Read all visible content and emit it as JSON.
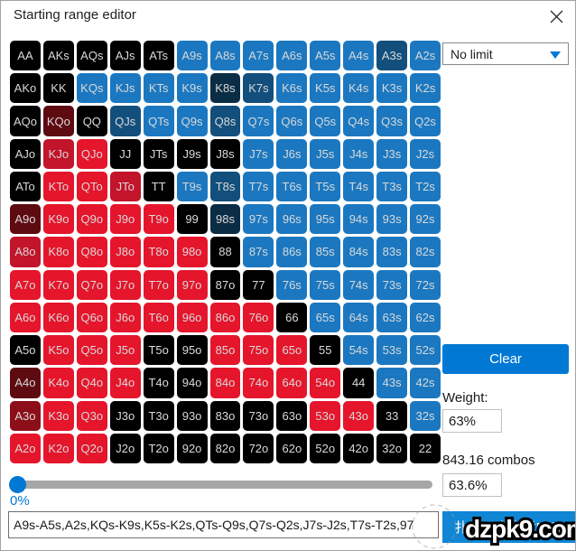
{
  "window": {
    "title": "Starting range editor"
  },
  "icons": {
    "close": "x-cross",
    "dropdown_arrow": "triangle-down"
  },
  "colors": {
    "accent": "#0078d4",
    "slider_track": "#a6a6a6",
    "map": {
      "k": "#000000",
      "b": "#1b78c0",
      "d": "#134f7c",
      "n": "#0b2c45",
      "r": "#e5152b",
      "e": "#c2142a",
      "m": "#5e0a11",
      "M": "#8c0e19"
    }
  },
  "grid": {
    "rows": [
      {
        "labels": [
          "AA",
          "AKs",
          "AQs",
          "AJs",
          "ATs",
          "A9s",
          "A8s",
          "A7s",
          "A6s",
          "A5s",
          "A4s",
          "A3s",
          "A2s"
        ],
        "colors": "kkkkkbbbbbbdb"
      },
      {
        "labels": [
          "AKo",
          "KK",
          "KQs",
          "KJs",
          "KTs",
          "K9s",
          "K8s",
          "K7s",
          "K6s",
          "K5s",
          "K4s",
          "K3s",
          "K2s"
        ],
        "colors": "kkbbbbndbbbbb"
      },
      {
        "labels": [
          "AQo",
          "KQo",
          "QQ",
          "QJs",
          "QTs",
          "Q9s",
          "Q8s",
          "Q7s",
          "Q6s",
          "Q5s",
          "Q4s",
          "Q3s",
          "Q2s"
        ],
        "colors": "kmkdbbdbbbbbb"
      },
      {
        "labels": [
          "AJo",
          "KJo",
          "QJo",
          "JJ",
          "JTs",
          "J9s",
          "J8s",
          "J7s",
          "J6s",
          "J5s",
          "J4s",
          "J3s",
          "J2s"
        ],
        "colors": "kerkkkkbbbbbb"
      },
      {
        "labels": [
          "ATo",
          "KTo",
          "QTo",
          "JTo",
          "TT",
          "T9s",
          "T8s",
          "T7s",
          "T6s",
          "T5s",
          "T4s",
          "T3s",
          "T2s"
        ],
        "colors": "krrekbdbbbbbb"
      },
      {
        "labels": [
          "A9o",
          "K9o",
          "Q9o",
          "J9o",
          "T9o",
          "99",
          "98s",
          "97s",
          "96s",
          "95s",
          "94s",
          "93s",
          "92s"
        ],
        "colors": "mrrrrknbbbbbb"
      },
      {
        "labels": [
          "A8o",
          "K8o",
          "Q8o",
          "J8o",
          "T8o",
          "98o",
          "88",
          "87s",
          "86s",
          "85s",
          "84s",
          "83s",
          "82s"
        ],
        "colors": "errrrrkbbbbbb"
      },
      {
        "labels": [
          "A7o",
          "K7o",
          "Q7o",
          "J7o",
          "T7o",
          "97o",
          "87o",
          "77",
          "76s",
          "75s",
          "74s",
          "73s",
          "72s"
        ],
        "colors": "rrrrrrkkbbbbb"
      },
      {
        "labels": [
          "A6o",
          "K6o",
          "Q6o",
          "J6o",
          "T6o",
          "96o",
          "86o",
          "76o",
          "66",
          "65s",
          "64s",
          "63s",
          "62s"
        ],
        "colors": "rrrrrrrrkbbbb"
      },
      {
        "labels": [
          "A5o",
          "K5o",
          "Q5o",
          "J5o",
          "T5o",
          "95o",
          "85o",
          "75o",
          "65o",
          "55",
          "54s",
          "53s",
          "52s"
        ],
        "colors": "krrrkkrrrkbbb"
      },
      {
        "labels": [
          "A4o",
          "K4o",
          "Q4o",
          "J4o",
          "T4o",
          "94o",
          "84o",
          "74o",
          "64o",
          "54o",
          "44",
          "43s",
          "42s"
        ],
        "colors": "mrrrkkrrrrkbb"
      },
      {
        "labels": [
          "A3o",
          "K3o",
          "Q3o",
          "J3o",
          "T3o",
          "93o",
          "83o",
          "73o",
          "63o",
          "53o",
          "43o",
          "33",
          "32s"
        ],
        "colors": "Mrrkkkkkkrrkb"
      },
      {
        "labels": [
          "A2o",
          "K2o",
          "Q2o",
          "J2o",
          "T2o",
          "92o",
          "82o",
          "72o",
          "62o",
          "52o",
          "42o",
          "32o",
          "22"
        ],
        "colors": "rrrkkkkkkkkkk"
      }
    ]
  },
  "slider": {
    "percent_label": "0%"
  },
  "range_input": {
    "value": "A9s-A5s,A2s,KQs-K9s,K5s-K2s,QTs-Q9s,Q7s-Q2s,J7s-J2s,T7s-T2s,97"
  },
  "panel": {
    "game_type_dropdown": {
      "value": "No limit"
    },
    "clear_button_label": "Clear",
    "weight_label": "Weight:",
    "weight_value": "63%",
    "combos_text": "843.16 combos",
    "combos_percent": "63.6%",
    "promo_button_label": "扑克玩家李哲Felix"
  },
  "watermark": {
    "text": "dzpk9.com"
  }
}
